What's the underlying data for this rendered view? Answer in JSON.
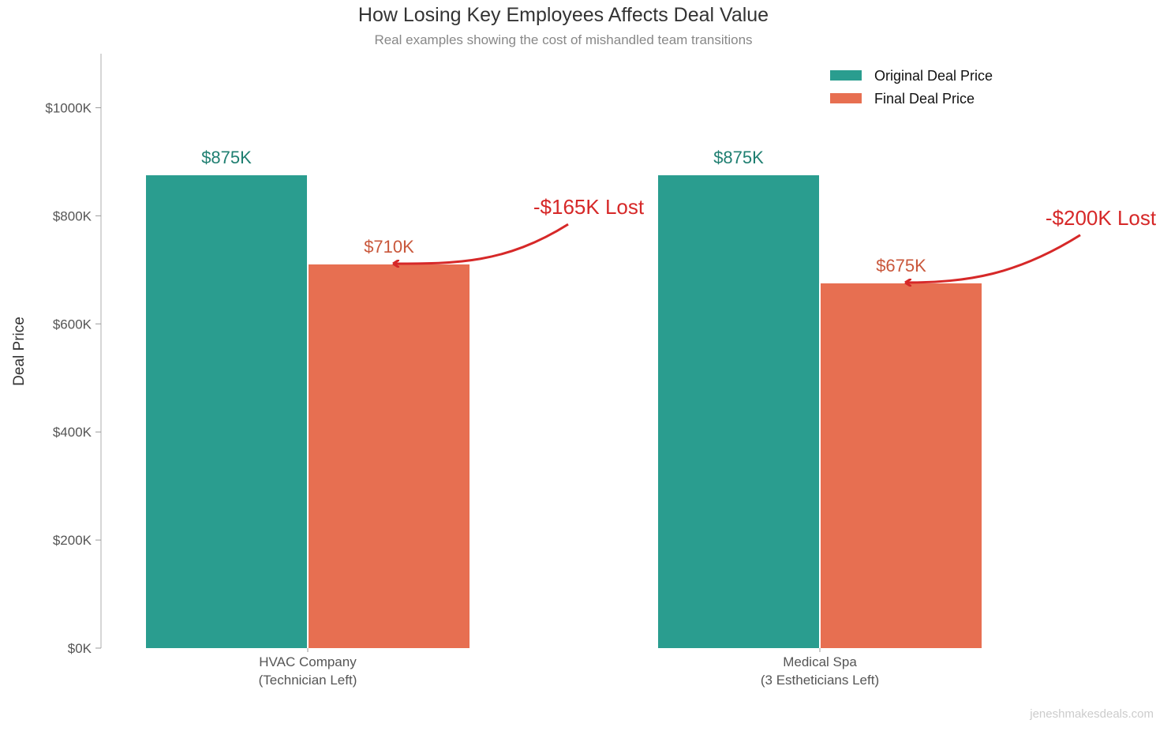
{
  "chart_data": {
    "type": "bar",
    "title": "How Losing Key Employees Affects Deal Value",
    "subtitle": "Real examples showing the cost of mishandled team transitions",
    "xlabel": "",
    "ylabel": "Deal Price",
    "ylim": [
      0,
      1100
    ],
    "yticks": [
      0,
      200,
      400,
      600,
      800,
      1000
    ],
    "ytick_labels": [
      "$0K",
      "$200K",
      "$400K",
      "$600K",
      "$800K",
      "$1000K"
    ],
    "categories": [
      "HVAC Company\n(Technician Left)",
      "Medical Spa\n(3 Estheticians Left)"
    ],
    "category_lines": [
      [
        "HVAC Company",
        "(Technician Left)"
      ],
      [
        "Medical Spa",
        "(3 Estheticians Left)"
      ]
    ],
    "series": [
      {
        "name": "Original Deal Price",
        "values": [
          875,
          875
        ],
        "labels": [
          "$875K",
          "$875K"
        ],
        "color": "#2a9d8f",
        "label_color": "#1f7f71"
      },
      {
        "name": "Final Deal Price",
        "values": [
          710,
          675
        ],
        "labels": [
          "$710K",
          "$675K"
        ],
        "color": "#e76f51",
        "label_color": "#c9573b"
      }
    ],
    "annotations": [
      {
        "text": "-$165K Lost",
        "category": 0,
        "color": "#d62828"
      },
      {
        "text": "-$200K Lost",
        "category": 1,
        "color": "#d62828"
      }
    ],
    "legend": "top-right",
    "grid": false
  },
  "watermark": "jeneshmakesdeals.com"
}
